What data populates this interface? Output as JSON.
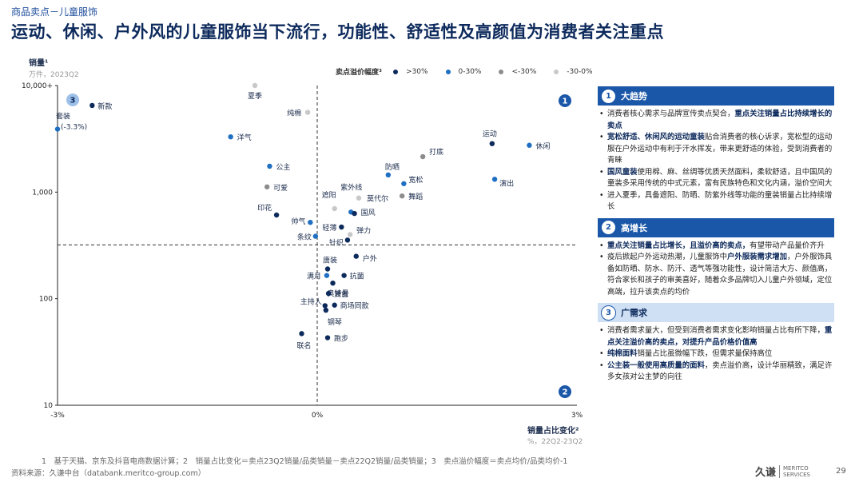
{
  "breadcrumb": "商品卖点－儿童服饰",
  "title": "运动、休闲、户外风的儿童服饰当下流行，功能性、舒适性及高颜值为消费者关注重点",
  "axes": {
    "y_label": "销量¹",
    "y_unit": "万件，2023Q2",
    "x_label": "销量占比变化²",
    "x_unit": "%，22Q2-23Q2"
  },
  "legend": {
    "title": "卖点溢价幅度³",
    "items": [
      {
        "label": ">30%",
        "color": "#0d2a5c"
      },
      {
        "label": "0-30%",
        "color": "#1f6fc2"
      },
      {
        "label": "<-30%",
        "color": "#8c8c8c"
      },
      {
        "label": "-30-0%",
        "color": "#c8c8c8"
      }
    ]
  },
  "chart_data": {
    "type": "scatter",
    "x_scale": "linear",
    "y_scale": "log",
    "xlim": [
      -3,
      3
    ],
    "ylim": [
      10,
      10000
    ],
    "x_ticks": [
      "-3%",
      "0%",
      "3%"
    ],
    "y_ticks": [
      "10",
      "100",
      "1,000",
      "10,000+"
    ],
    "quadrant_lines": {
      "x": 0,
      "y": 320
    },
    "quadrant_badges": [
      "1",
      "2",
      "3"
    ],
    "points": [
      {
        "label": "套装",
        "sub": "(-3.3%)",
        "x": -3.0,
        "y": 3900,
        "cat": "0-30%"
      },
      {
        "label": "新款",
        "x": -2.6,
        "y": 6500,
        "cat": ">30%"
      },
      {
        "label": "夏季",
        "x": -0.72,
        "y": 10000,
        "cat": "-30-0%"
      },
      {
        "label": "纯棉",
        "x": -0.11,
        "y": 5600,
        "cat": "-30-0%"
      },
      {
        "label": "洋气",
        "x": -1.0,
        "y": 3300,
        "cat": "0-30%"
      },
      {
        "label": "公主",
        "x": -0.55,
        "y": 1750,
        "cat": "0-30%"
      },
      {
        "label": "可爱",
        "x": -0.58,
        "y": 1120,
        "cat": "<-30%"
      },
      {
        "label": "印花",
        "x": -0.47,
        "y": 610,
        "cat": ">30%"
      },
      {
        "label": "帅气",
        "x": -0.08,
        "y": 520,
        "cat": "0-30%"
      },
      {
        "label": "轻薄",
        "x": 0.28,
        "y": 470,
        "cat": ">30%"
      },
      {
        "label": "条纹",
        "x": -0.02,
        "y": 385,
        "cat": "0-30%"
      },
      {
        "label": "针织",
        "x": 0.35,
        "y": 355,
        "cat": ">30%"
      },
      {
        "label": "弹力",
        "x": 0.38,
        "y": 400,
        "cat": "-30-0%"
      },
      {
        "label": "遮阳",
        "x": 0.2,
        "y": 700,
        "cat": "-30-0%"
      },
      {
        "label": "紫外线",
        "x": 0.39,
        "y": 650,
        "cat": "0-30%"
      },
      {
        "label": "国风",
        "x": 0.43,
        "y": 630,
        "cat": ">30%"
      },
      {
        "label": "莫代尔",
        "x": 0.48,
        "y": 880,
        "cat": "-30-0%"
      },
      {
        "label": "防晒",
        "x": 0.82,
        "y": 1450,
        "cat": "0-30%"
      },
      {
        "label": "宽松",
        "x": 1.0,
        "y": 1200,
        "cat": "0-30%"
      },
      {
        "label": "舞蹈",
        "x": 0.98,
        "y": 920,
        "cat": "<-30%"
      },
      {
        "label": "打底",
        "x": 1.22,
        "y": 2150,
        "cat": "<-30%"
      },
      {
        "label": "运动",
        "x": 2.02,
        "y": 2850,
        "cat": ">30%"
      },
      {
        "label": "休闲",
        "x": 2.45,
        "y": 2750,
        "cat": "0-30%"
      },
      {
        "label": "演出",
        "x": 2.05,
        "y": 1320,
        "cat": "0-30%"
      },
      {
        "label": "户外",
        "x": 0.45,
        "y": 250,
        "cat": ">30%"
      },
      {
        "label": "唐装",
        "x": 0.12,
        "y": 190,
        "cat": ">30%"
      },
      {
        "label": "满月",
        "x": 0.11,
        "y": 165,
        "cat": "0-30%"
      },
      {
        "label": "抗菌",
        "x": 0.31,
        "y": 165,
        "cat": ">30%"
      },
      {
        "label": "奥特曼",
        "x": 0.18,
        "y": 140,
        "cat": ">30%"
      },
      {
        "label": "复古",
        "x": 0.13,
        "y": 112,
        "cat": ">30%"
      },
      {
        "label": "主持人",
        "x": 0.09,
        "y": 86,
        "cat": ">30%"
      },
      {
        "label": "商场同款",
        "x": 0.2,
        "y": 87,
        "cat": ">30%"
      },
      {
        "label": "钢琴",
        "x": 0.1,
        "y": 78,
        "cat": ">30%"
      },
      {
        "label": "联名",
        "x": -0.18,
        "y": 47,
        "cat": ">30%"
      },
      {
        "label": "跑步",
        "x": 0.12,
        "y": 43,
        "cat": ">30%"
      }
    ]
  },
  "panel": {
    "sections": [
      {
        "num": "1",
        "title": "大趋势",
        "items": [
          {
            "a": "消费者核心需求与品牌宣传卖点契合，",
            "b": "重点关注销量占比持续增长的卖点",
            "c": ""
          },
          {
            "a": "",
            "b": "宽松舒适、休闲风的运动童装",
            "c": "贴合消费者的核心诉求，宽松型的运动服在户外运动中有利于汗水挥发，带来更舒适的体验，受到消费者的青睐"
          },
          {
            "a": "",
            "b": "国风童装",
            "c": "使用棉、麻、丝绸等优质天然面料，柔软舒适，且中国风的童装多采用传统的中式元素，富有民族特色和文化内涵，溢价空间大"
          },
          {
            "a": "进入夏季，具备遮阳、防晒、防紫外线等功能的童装销量占比持续增长",
            "b": "",
            "c": ""
          }
        ]
      },
      {
        "num": "2",
        "title": "高增长",
        "items": [
          {
            "a": "",
            "b": "重点关注销量占比增长，且溢价高的卖点，",
            "c": "有望带动产品量价齐升"
          },
          {
            "a": "疫后掀起户外运动热潮，儿童服饰中",
            "b": "户外服装需求增加",
            "c": "，户外服饰具备如防晒、防水、防汗、透气等强功能性，设计简洁大方、颜值高，符合家长和孩子的审美喜好，随着众多品牌切入儿童户外领域，定位高端，拉升该卖点的均价"
          }
        ]
      },
      {
        "num": "3",
        "title": "广需求",
        "items": [
          {
            "a": "消费者需求量大，但受到消费者需求变化影响销量占比有所下降，",
            "b": "重点关注溢价高的卖点，对提升产品价格价值高",
            "c": ""
          },
          {
            "a": "",
            "b": "纯棉面料",
            "c": "销量占比虽微幅下跌，但需求量保持高位"
          },
          {
            "a": "",
            "b": "公主装一般使用高质量的面料",
            "c": "，卖点溢价高，设计华丽精致，满足许多女孩对公主梦的向往"
          }
        ]
      }
    ]
  },
  "footnote": "1　基于天猫、京东及抖音电商数据计算；2　销量占比变化＝卖点23Q2销量/品类销量－卖点22Q2销量/品类销量；3　卖点溢价幅度＝卖点均价/品类均价-1",
  "source": "资料来源：久谦中台（databank.meritco-group.com）",
  "logo": {
    "cn": "久谦",
    "en1": "MERITCO",
    "en2": "SERVICES"
  },
  "page_number": "29"
}
